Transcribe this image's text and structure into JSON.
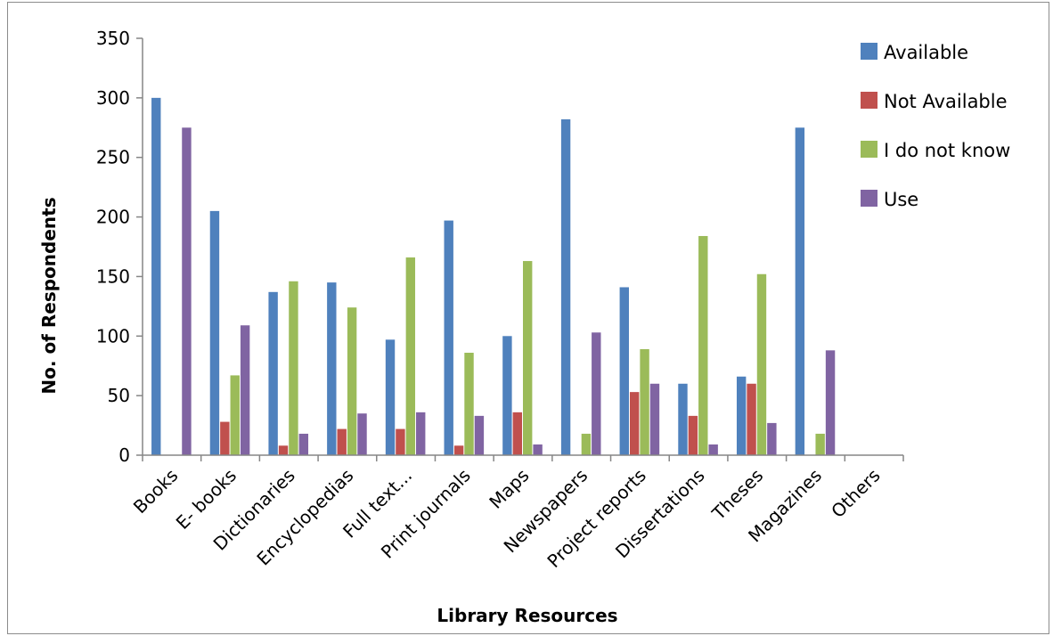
{
  "chart_data": {
    "type": "bar",
    "title": "",
    "xlabel": "Library Resources",
    "ylabel": "No. of  Respondents",
    "ylim": [
      0,
      350
    ],
    "yticks": [
      0,
      50,
      100,
      150,
      200,
      250,
      300,
      350
    ],
    "grid": false,
    "legend_position": "top-right",
    "categories": [
      "Books",
      "E- books",
      "Dictionaries",
      "Encyclopedias",
      "Full text...",
      "Print journals",
      "Maps",
      "Newspapers",
      "Project reports",
      "Dissertations",
      "Theses",
      "Magazines",
      "Others"
    ],
    "series": [
      {
        "name": "Available",
        "color": "#4f81bd",
        "values": [
          300,
          205,
          137,
          145,
          97,
          197,
          100,
          282,
          141,
          60,
          66,
          275,
          0
        ]
      },
      {
        "name": "Not Available",
        "color": "#c0504d",
        "values": [
          0,
          28,
          8,
          22,
          22,
          8,
          36,
          0,
          53,
          33,
          60,
          0,
          0
        ]
      },
      {
        "name": "I do not know",
        "color": "#9bbb59",
        "values": [
          0,
          67,
          146,
          124,
          166,
          86,
          163,
          18,
          89,
          184,
          152,
          18,
          0
        ]
      },
      {
        "name": "Use",
        "color": "#8064a2",
        "values": [
          275,
          109,
          18,
          35,
          36,
          33,
          9,
          103,
          60,
          9,
          27,
          88,
          0
        ]
      }
    ]
  }
}
